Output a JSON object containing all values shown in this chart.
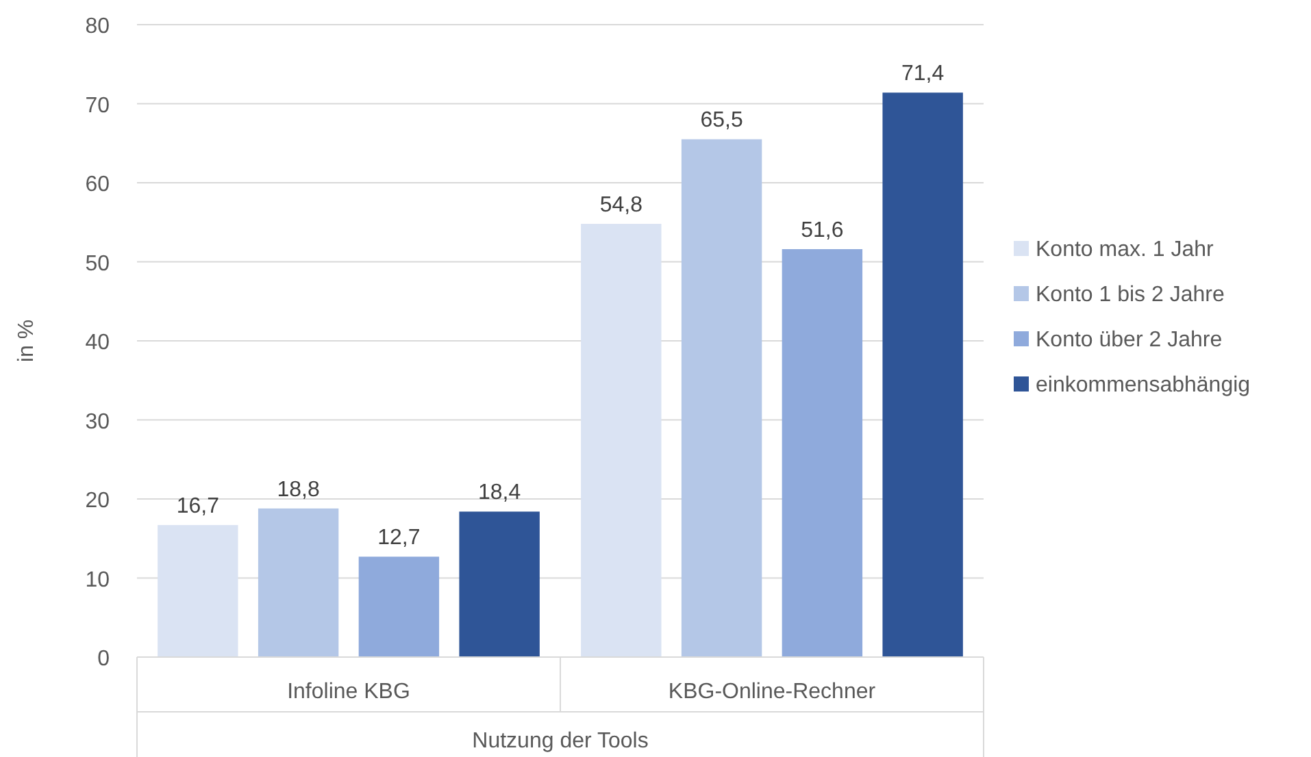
{
  "chart_data": {
    "type": "bar",
    "ylabel": "in %",
    "xlabel": "Nutzung der Tools",
    "categories": [
      "Infoline KBG",
      "KBG-Online-Rechner"
    ],
    "series": [
      {
        "name": "Konto max. 1 Jahr",
        "color": "#dae3f3",
        "values": [
          16.7,
          54.8
        ],
        "value_labels": [
          "16,7",
          "54,8"
        ]
      },
      {
        "name": "Konto 1 bis 2 Jahre",
        "color": "#b4c7e7",
        "values": [
          18.8,
          65.5
        ],
        "value_labels": [
          "18,8",
          "65,5"
        ]
      },
      {
        "name": "Konto über 2 Jahre",
        "color": "#8faadc",
        "values": [
          12.7,
          51.6
        ],
        "value_labels": [
          "12,7",
          "51,6"
        ]
      },
      {
        "name": "einkommensabhängig",
        "color": "#2f5597",
        "values": [
          18.4,
          71.4
        ],
        "value_labels": [
          "18,4",
          "71,4"
        ]
      }
    ],
    "ylim": [
      0,
      80
    ],
    "yticks": [
      0,
      10,
      20,
      30,
      40,
      50,
      60,
      70,
      80
    ],
    "grid": "y",
    "legend": "right"
  }
}
